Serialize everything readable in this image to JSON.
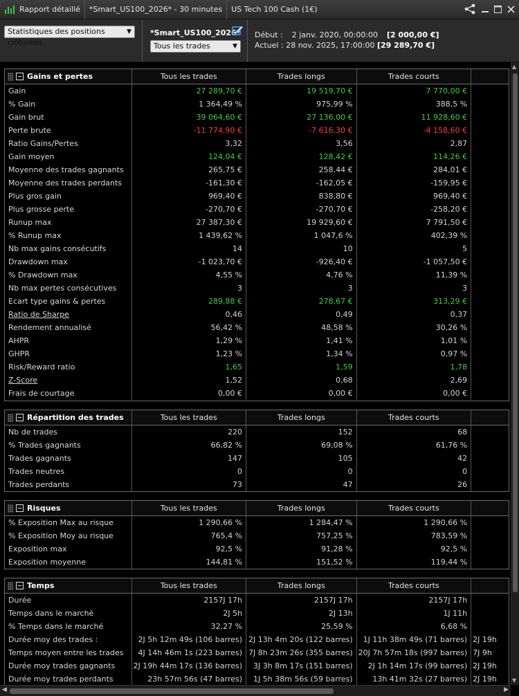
{
  "titlebar": {
    "tab1": "Rapport détaillé",
    "tab2": "*Smart_US100_2026* - 30 minutes",
    "tab3": "US Tech 100 Cash (1€)"
  },
  "header": {
    "stats_select": "Statistiques des positions clôturées",
    "strategy_name": "*Smart_US100_2026*",
    "trades_select": "Tous les trades",
    "debut_label": "Début :",
    "debut_value": "2 janv. 2020, 00:00:00",
    "debut_amount": "[2 000,00 €]",
    "actuel_label": "Actuel :",
    "actuel_value": "28 nov. 2025, 17:00:00",
    "actuel_amount": "[29 289,70 €]"
  },
  "columns": [
    "Tous les trades",
    "Trades longs",
    "Trades courts"
  ],
  "sections": {
    "gains": {
      "title": "Gains et pertes",
      "rows": [
        {
          "label": "Gain",
          "v": [
            "27 289,70 €",
            "19 519,70 €",
            "7 770,00 €"
          ],
          "tone": "pos"
        },
        {
          "label": "% Gain",
          "v": [
            "1 364,49 %",
            "975,99 %",
            "388,5 %"
          ]
        },
        {
          "label": "Gain brut",
          "v": [
            "39 064,60 €",
            "27 136,00 €",
            "11 928,60 €"
          ],
          "tone": "pos"
        },
        {
          "label": "Perte brute",
          "v": [
            "-11 774,90 €",
            "-7 616,30 €",
            "-4 158,60 €"
          ],
          "tone": "neg"
        },
        {
          "label": "Ratio Gains/Pertes",
          "v": [
            "3,32",
            "3,56",
            "2,87"
          ]
        },
        {
          "label": "Gain moyen",
          "v": [
            "124,04 €",
            "128,42 €",
            "114,26 €"
          ],
          "tone": "pos"
        },
        {
          "label": "Moyenne des trades gagnants",
          "v": [
            "265,75 €",
            "258,44 €",
            "284,01 €"
          ]
        },
        {
          "label": "Moyenne des trades perdants",
          "v": [
            "-161,30 €",
            "-162,05 €",
            "-159,95 €"
          ]
        },
        {
          "label": "Plus gros gain",
          "v": [
            "969,40 €",
            "838,80 €",
            "969,40 €"
          ]
        },
        {
          "label": "Plus grosse perte",
          "v": [
            "-270,70 €",
            "-270,70 €",
            "-258,20 €"
          ]
        },
        {
          "label": "Runup max",
          "v": [
            "27 387,30 €",
            "19 929,60 €",
            "7 791,50 €"
          ]
        },
        {
          "label": "% Runup max",
          "v": [
            "1 439,62 %",
            "1 047,6 %",
            "402,39 %"
          ]
        },
        {
          "label": "Nb max gains consécutifs",
          "v": [
            "14",
            "10",
            "5"
          ]
        },
        {
          "label": "Drawdown max",
          "v": [
            "-1 023,70 €",
            "-926,40 €",
            "-1 057,50 €"
          ]
        },
        {
          "label": "% Drawdown max",
          "v": [
            "4,55 %",
            "4,76 %",
            "11,39 %"
          ]
        },
        {
          "label": "Nb max pertes consécutives",
          "v": [
            "3",
            "3",
            "3"
          ]
        },
        {
          "label": "Ecart type gains & pertes",
          "v": [
            "289,88 €",
            "278,67 €",
            "313,29 €"
          ],
          "tone": "pos"
        },
        {
          "label": "Ratio de Sharpe",
          "v": [
            "0,46",
            "0,49",
            "0,37"
          ],
          "link": true
        },
        {
          "label": "Rendement annualisé",
          "v": [
            "56,42 %",
            "48,58 %",
            "30,26 %"
          ]
        },
        {
          "label": "AHPR",
          "v": [
            "1,29 %",
            "1,41 %",
            "1,01 %"
          ]
        },
        {
          "label": "GHPR",
          "v": [
            "1,23 %",
            "1,34 %",
            "0,97 %"
          ]
        },
        {
          "label": "Risk/Reward ratio",
          "v": [
            "1,65",
            "1,59",
            "1,78"
          ],
          "tone": "pos"
        },
        {
          "label": "Z-Score",
          "v": [
            "1,52",
            "0,68",
            "2,69"
          ],
          "link": true
        },
        {
          "label": "Frais de courtage",
          "v": [
            "0,00 €",
            "0,00 €",
            "0,00 €"
          ]
        }
      ]
    },
    "repartition": {
      "title": "Répartition des trades",
      "rows": [
        {
          "label": "Nb de trades",
          "v": [
            "220",
            "152",
            "68"
          ]
        },
        {
          "label": "% Trades gagnants",
          "v": [
            "66,82 %",
            "69,08 %",
            "61,76 %"
          ]
        },
        {
          "label": "Trades gagnants",
          "v": [
            "147",
            "105",
            "42"
          ]
        },
        {
          "label": "Trades neutres",
          "v": [
            "0",
            "0",
            "0"
          ]
        },
        {
          "label": "Trades perdants",
          "v": [
            "73",
            "47",
            "26"
          ]
        }
      ]
    },
    "risques": {
      "title": "Risques",
      "rows": [
        {
          "label": "% Exposition Max au risque",
          "v": [
            "1 290,66 %",
            "1 284,47 %",
            "1 290,66 %"
          ]
        },
        {
          "label": "% Exposition Moy au risque",
          "v": [
            "765,4 %",
            "757,25 %",
            "783,59 %"
          ]
        },
        {
          "label": "Exposition max",
          "v": [
            "92,5 %",
            "91,28 %",
            "92,5 %"
          ]
        },
        {
          "label": "Exposition moyenne",
          "v": [
            "144,81 %",
            "151,52 %",
            "119,44 %"
          ]
        }
      ]
    },
    "temps": {
      "title": "Temps",
      "rows": [
        {
          "label": "Durée",
          "v": [
            "2157J 17h",
            "2157J 17h",
            "2157J 17h"
          ]
        },
        {
          "label": "Temps dans le marché",
          "v": [
            "2J 5h",
            "2J 13h",
            "1J 11h"
          ]
        },
        {
          "label": "% Temps dans le marché",
          "v": [
            "32,27 %",
            "25,59 %",
            "6,68 %"
          ]
        },
        {
          "label": "Durée moy des trades :",
          "v": [
            "2J 5h 12m 49s (106 barres)",
            "2J 13h 4m 20s (122 barres)",
            "1J 11h 38m 49s (71 barres)"
          ],
          "extra": "2J 19h"
        },
        {
          "label": "Temps moyen entre les trades",
          "v": [
            "4J 14h 46m 1s (223 barres)",
            "7J 8h 23m 26s (355 barres)",
            "20J 7h 57m 18s (997 barres)"
          ],
          "extra": "7J 9h"
        },
        {
          "label": "Durée moy trades gagnants",
          "v": [
            "2J 19h 44m 17s (136 barres)",
            "3J 3h 8m 17s (151 barres)",
            "2J 1h 14m 17s (99 barres)"
          ],
          "extra": "2J 19h"
        },
        {
          "label": "Durée moy trades perdants",
          "v": [
            "23h 57m 56s (47 barres)",
            "1J 5h 38m 56s (59 barres)",
            "13h 41m 32s (27 barres)"
          ],
          "extra": "2J 19h"
        }
      ]
    }
  }
}
